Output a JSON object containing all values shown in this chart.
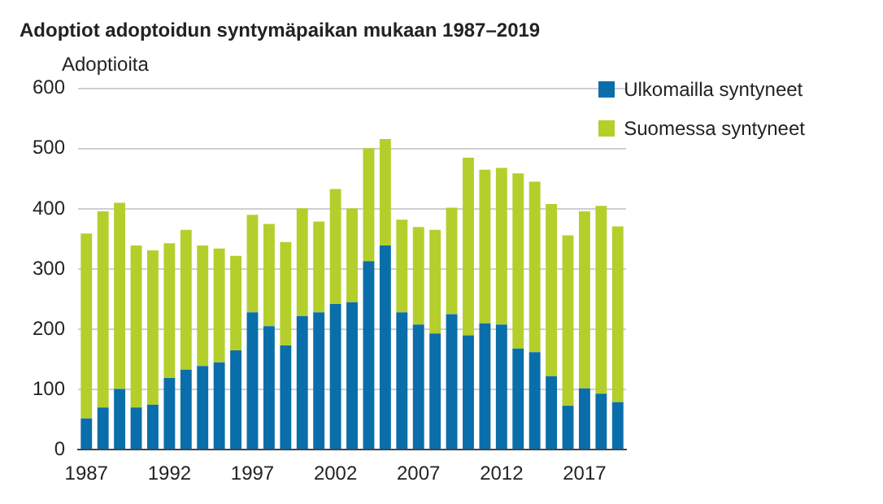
{
  "chart_data": {
    "type": "bar",
    "title": "Adoptiot adoptoidun syntymäpaikan mukaan 1987–2019",
    "ylabel": "Adoptioita",
    "categories": [
      "1987",
      null,
      null,
      null,
      null,
      "1992",
      null,
      null,
      null,
      null,
      "1997",
      null,
      null,
      null,
      null,
      "2002",
      null,
      null,
      null,
      null,
      "2007",
      null,
      null,
      null,
      null,
      "2012",
      null,
      null,
      null,
      null,
      "2017",
      null,
      null
    ],
    "stacked": true,
    "series": [
      {
        "name": "Ulkomailla syntyneet",
        "color": "#0a6eaa",
        "values": [
          52,
          70,
          101,
          70,
          75,
          119,
          133,
          139,
          145,
          165,
          228,
          205,
          173,
          222,
          228,
          242,
          245,
          313,
          339,
          228,
          208,
          193,
          225,
          190,
          210,
          208,
          168,
          162,
          122,
          73,
          102,
          93,
          79
        ]
      },
      {
        "name": "Suomessa syntyneet",
        "color": "#b4cf2c",
        "values": [
          307,
          326,
          309,
          269,
          256,
          224,
          232,
          200,
          189,
          157,
          162,
          170,
          172,
          179,
          151,
          191,
          156,
          188,
          177,
          154,
          162,
          172,
          177,
          295,
          255,
          260,
          291,
          283,
          286,
          283,
          294,
          312,
          292
        ]
      }
    ],
    "ylim": [
      0,
      600
    ],
    "yticks": [
      0,
      100,
      200,
      300,
      400,
      500,
      600
    ],
    "grid": "y",
    "legend": "top right"
  }
}
